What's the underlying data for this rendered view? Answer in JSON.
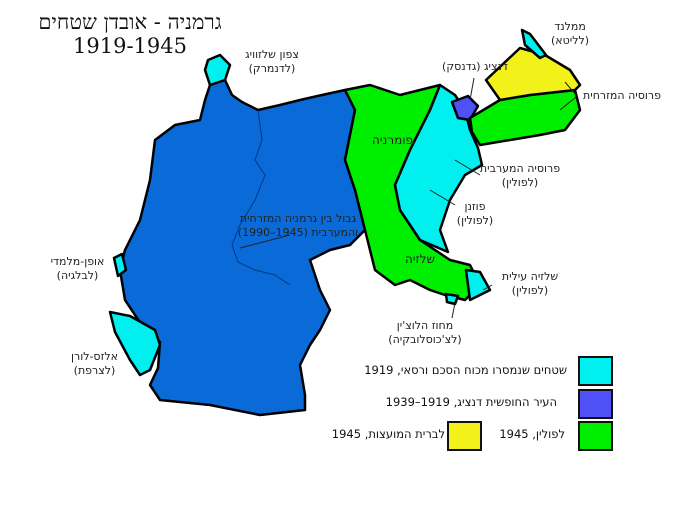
{
  "title": {
    "line1": "גרמניה - אובדן שטחים",
    "line2": "1919-1945"
  },
  "colors": {
    "germany": "#0a6ad8",
    "versailles": "#00f0f0",
    "danzig": "#4f50f5",
    "poland_1945": "#00ee00",
    "ussr_1945": "#f2f21a",
    "border": "#000000"
  },
  "labels": {
    "north_schleswig": {
      "name": "צפון שלזוויג",
      "dest": "(לדנמרק)"
    },
    "memel": {
      "name": "ממלנד",
      "dest": "(לליטא)"
    },
    "danzig": {
      "name": "דנציג (גדנסק)"
    },
    "east_prussia": {
      "name": "פרוסיה המזרחית"
    },
    "pomerania": {
      "name": "פומרניה"
    },
    "west_prussia": {
      "name": "פרוסיה המערבית",
      "dest": "(לפולין)"
    },
    "posen": {
      "name": "פוזנן",
      "dest": "(לפולין)"
    },
    "silesia": {
      "name": "שלזיה"
    },
    "upper_silesia": {
      "name": "שלזיה עילית",
      "dest": "(לפולין)"
    },
    "hlucin": {
      "name": "מחוז הלוצ'ין",
      "dest": "(לצ'כוסלובקיה)"
    },
    "inner_border": {
      "name": "גבול בין גרמניה המזרחית",
      "dest": "והמערבית (1945–1990)"
    },
    "eupen": {
      "name": "אופן-מלמדי",
      "dest": "(לבלגיה)"
    },
    "alsace": {
      "name": "אלזס-לורן",
      "dest": "(לצרפת)"
    }
  },
  "legend": [
    {
      "label": "שטחים שנמסרו מכוח הסכם ורסאי, 1919",
      "color": "#00f0f0"
    },
    {
      "label": "העיר החופשית דנציג, 1919–1939",
      "color": "#4f50f5"
    },
    {
      "label": "לפולין, 1945",
      "color": "#00ee00"
    },
    {
      "label": "לברית המועצות, 1945",
      "color": "#f2f21a"
    }
  ]
}
